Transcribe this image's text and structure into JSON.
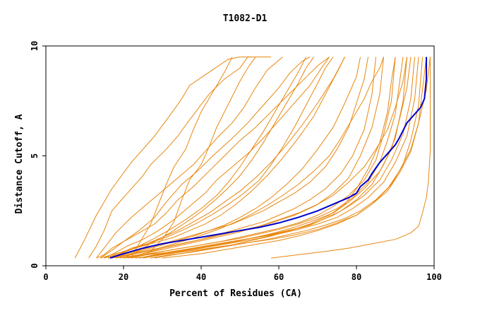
{
  "chart_data": {
    "type": "line",
    "title": "T1082-D1",
    "xlabel": "Percent of Residues (CA)",
    "ylabel": "Distance Cutoff, A",
    "xlim": [
      0,
      100
    ],
    "ylim": [
      0,
      10
    ],
    "x_ticks": [
      0,
      20,
      40,
      60,
      80,
      100
    ],
    "y_ticks": [
      0,
      5,
      10
    ],
    "grid": false,
    "colors": {
      "background_series": "#e8870e",
      "highlight": "#0000cc",
      "axes": "#000000"
    },
    "highlight_series": {
      "x": [
        16.5,
        20,
        25,
        30,
        35,
        40,
        45,
        50,
        55,
        60,
        65,
        70,
        74,
        78,
        80,
        81,
        83,
        84,
        86,
        88,
        90,
        91,
        93,
        95,
        96.5,
        97.5,
        98,
        98
      ],
      "y": [
        0.35,
        0.55,
        0.8,
        1.0,
        1.15,
        1.3,
        1.45,
        1.6,
        1.75,
        1.95,
        2.2,
        2.5,
        2.8,
        3.1,
        3.3,
        3.6,
        3.9,
        4.2,
        4.7,
        5.1,
        5.5,
        5.8,
        6.5,
        6.9,
        7.2,
        7.6,
        8.5,
        9.5
      ]
    },
    "series": [
      {
        "x": [
          7.5,
          10,
          13,
          17,
          22,
          28,
          33,
          35,
          37,
          42,
          47,
          50,
          52,
          56,
          58
        ],
        "y": [
          0.35,
          1.2,
          2.3,
          3.5,
          4.7,
          5.9,
          7.1,
          7.6,
          8.2,
          8.8,
          9.4,
          9.5,
          9.5,
          9.5,
          9.5
        ]
      },
      {
        "x": [
          11,
          13,
          15,
          17,
          22,
          25,
          27,
          31,
          34,
          36,
          39,
          42,
          46,
          50,
          52,
          53
        ],
        "y": [
          0.35,
          0.9,
          1.6,
          2.5,
          3.5,
          4.1,
          4.6,
          5.3,
          5.9,
          6.4,
          7.1,
          7.8,
          8.5,
          9.0,
          9.5,
          9.5
        ]
      },
      {
        "x": [
          13,
          15,
          18,
          22,
          26,
          30,
          34,
          38,
          41,
          44,
          48,
          51,
          54,
          57,
          61
        ],
        "y": [
          0.35,
          0.8,
          1.5,
          2.2,
          2.8,
          3.4,
          4.0,
          4.6,
          5.2,
          5.8,
          6.5,
          7.2,
          8.1,
          8.9,
          9.5
        ]
      },
      {
        "x": [
          14,
          17,
          20,
          24,
          28,
          31,
          35,
          39,
          43,
          48,
          52,
          56,
          60,
          63,
          66,
          68
        ],
        "y": [
          0.35,
          0.7,
          1.1,
          1.6,
          2.2,
          2.9,
          3.7,
          4.3,
          5.0,
          5.8,
          6.5,
          7.3,
          8.1,
          8.8,
          9.3,
          9.5
        ]
      },
      {
        "x": [
          13,
          15,
          17,
          20,
          24,
          28,
          31,
          34,
          38,
          42,
          46,
          50,
          54,
          58,
          62,
          66,
          70,
          73
        ],
        "y": [
          0.35,
          0.5,
          0.8,
          1.1,
          1.5,
          1.9,
          2.4,
          3.0,
          3.6,
          4.3,
          5.0,
          5.7,
          6.3,
          7.0,
          7.7,
          8.4,
          9.1,
          9.5
        ]
      },
      {
        "x": [
          15,
          18,
          21,
          25,
          29,
          33,
          37,
          41,
          44,
          48,
          52,
          56,
          60,
          64,
          68,
          71,
          73
        ],
        "y": [
          0.35,
          0.6,
          0.9,
          1.2,
          1.6,
          2.1,
          2.7,
          3.3,
          3.9,
          4.5,
          5.1,
          5.8,
          6.6,
          7.4,
          8.2,
          9.0,
          9.5
        ]
      },
      {
        "x": [
          16,
          19,
          22,
          26,
          30,
          34,
          38,
          42,
          46,
          50,
          54,
          58,
          62,
          66,
          70,
          74,
          77
        ],
        "y": [
          0.35,
          0.55,
          0.8,
          1.0,
          1.3,
          1.6,
          2.0,
          2.4,
          2.9,
          3.4,
          4.0,
          4.7,
          5.5,
          6.4,
          7.4,
          8.5,
          9.5
        ]
      },
      {
        "x": [
          14,
          17,
          21,
          25,
          29,
          33,
          37,
          41,
          45,
          49,
          53,
          57,
          61,
          65,
          69,
          72,
          75,
          77
        ],
        "y": [
          0.35,
          0.5,
          0.7,
          0.9,
          1.1,
          1.3,
          1.6,
          1.9,
          2.3,
          2.8,
          3.4,
          4.1,
          4.9,
          5.8,
          6.8,
          7.8,
          8.8,
          9.5
        ]
      },
      {
        "x": [
          18,
          22,
          26,
          30,
          34,
          38,
          42,
          46,
          50,
          54,
          58,
          62,
          66,
          70,
          74,
          77,
          80,
          81
        ],
        "y": [
          0.35,
          0.55,
          0.75,
          0.95,
          1.15,
          1.35,
          1.6,
          1.85,
          2.2,
          2.6,
          3.1,
          3.7,
          4.4,
          5.3,
          6.3,
          7.4,
          8.6,
          9.5
        ]
      },
      {
        "x": [
          16,
          20,
          24,
          28,
          32,
          36,
          40,
          44,
          48,
          52,
          56,
          60,
          64,
          68,
          72,
          75,
          78,
          80,
          82,
          83
        ],
        "y": [
          0.35,
          0.5,
          0.7,
          0.9,
          1.1,
          1.3,
          1.5,
          1.7,
          1.9,
          2.2,
          2.5,
          2.9,
          3.3,
          3.8,
          4.5,
          5.3,
          6.3,
          7.4,
          8.5,
          9.5
        ]
      },
      {
        "x": [
          20,
          24,
          28,
          32,
          36,
          40,
          44,
          48,
          52,
          56,
          60,
          64,
          68,
          72,
          76,
          79,
          82,
          84,
          85
        ],
        "y": [
          0.35,
          0.5,
          0.7,
          0.9,
          1.05,
          1.2,
          1.4,
          1.6,
          1.8,
          2.0,
          2.3,
          2.6,
          3.0,
          3.5,
          4.2,
          5.0,
          6.2,
          7.8,
          9.5
        ]
      },
      {
        "x": [
          18,
          22,
          26,
          30,
          35,
          40,
          45,
          50,
          55,
          60,
          65,
          70,
          74,
          78,
          81,
          84,
          86,
          87
        ],
        "y": [
          0.35,
          0.5,
          0.65,
          0.8,
          1.0,
          1.2,
          1.4,
          1.6,
          1.8,
          2.1,
          2.4,
          2.8,
          3.3,
          4.0,
          5.0,
          6.3,
          7.8,
          9.5
        ]
      },
      {
        "x": [
          22,
          26,
          30,
          35,
          40,
          45,
          50,
          55,
          60,
          65,
          70,
          74,
          78,
          82,
          85,
          87,
          89,
          90
        ],
        "y": [
          0.35,
          0.5,
          0.65,
          0.8,
          0.95,
          1.1,
          1.3,
          1.5,
          1.7,
          1.95,
          2.3,
          2.7,
          3.2,
          3.9,
          4.8,
          6.0,
          7.5,
          9.5
        ]
      },
      {
        "x": [
          20,
          25,
          30,
          35,
          40,
          45,
          50,
          55,
          60,
          65,
          70,
          75,
          79,
          83,
          86,
          88,
          90,
          91,
          92
        ],
        "y": [
          0.35,
          0.5,
          0.65,
          0.8,
          0.95,
          1.1,
          1.25,
          1.45,
          1.65,
          1.9,
          2.2,
          2.6,
          3.1,
          3.8,
          4.7,
          5.7,
          6.9,
          8.2,
          9.5
        ]
      },
      {
        "x": [
          24,
          28,
          33,
          38,
          43,
          48,
          53,
          58,
          63,
          68,
          72,
          76,
          80,
          84,
          87,
          90,
          92,
          93
        ],
        "y": [
          0.35,
          0.5,
          0.65,
          0.8,
          0.95,
          1.1,
          1.25,
          1.4,
          1.6,
          1.85,
          2.15,
          2.5,
          3.0,
          3.7,
          4.6,
          5.8,
          7.5,
          9.5
        ]
      },
      {
        "x": [
          21,
          26,
          31,
          36,
          41,
          46,
          51,
          56,
          61,
          66,
          70,
          74,
          78,
          82,
          86,
          89,
          92,
          94,
          95
        ],
        "y": [
          0.35,
          0.5,
          0.6,
          0.75,
          0.9,
          1.05,
          1.2,
          1.35,
          1.55,
          1.75,
          2.0,
          2.3,
          2.7,
          3.2,
          3.9,
          4.8,
          6.0,
          7.6,
          9.5
        ]
      },
      {
        "x": [
          25,
          30,
          35,
          40,
          45,
          50,
          55,
          60,
          65,
          70,
          75,
          79,
          83,
          87,
          90,
          93,
          95,
          96
        ],
        "y": [
          0.35,
          0.5,
          0.65,
          0.8,
          0.95,
          1.1,
          1.25,
          1.45,
          1.65,
          1.9,
          2.2,
          2.6,
          3.1,
          3.8,
          4.7,
          5.9,
          7.6,
          9.5
        ]
      },
      {
        "x": [
          27,
          32,
          37,
          42,
          47,
          52,
          57,
          62,
          67,
          72,
          77,
          81,
          85,
          89,
          92,
          94,
          96,
          97
        ],
        "y": [
          0.35,
          0.5,
          0.6,
          0.75,
          0.9,
          1.05,
          1.2,
          1.4,
          1.6,
          1.85,
          2.15,
          2.5,
          3.0,
          3.7,
          4.6,
          5.7,
          7.3,
          9.5
        ]
      },
      {
        "x": [
          23,
          28,
          34,
          40,
          46,
          52,
          58,
          64,
          70,
          75,
          80,
          84,
          88,
          91,
          94,
          96,
          97,
          98
        ],
        "y": [
          0.35,
          0.45,
          0.6,
          0.75,
          0.9,
          1.05,
          1.2,
          1.4,
          1.65,
          1.95,
          2.3,
          2.8,
          3.4,
          4.2,
          5.2,
          6.5,
          8.0,
          9.5
        ]
      },
      {
        "x": [
          30,
          35,
          40,
          45,
          50,
          55,
          60,
          65,
          70,
          75,
          80,
          84,
          88,
          91,
          94,
          96,
          98,
          99
        ],
        "y": [
          0.35,
          0.45,
          0.55,
          0.7,
          0.85,
          1.0,
          1.15,
          1.35,
          1.6,
          1.9,
          2.3,
          2.8,
          3.5,
          4.3,
          5.3,
          6.5,
          8.0,
          9.5
        ]
      },
      {
        "x": [
          19,
          24,
          29,
          34,
          39,
          44,
          49,
          54,
          59,
          64,
          69,
          74,
          78,
          82,
          85,
          88,
          90,
          92,
          93
        ],
        "y": [
          0.35,
          0.5,
          0.7,
          0.9,
          1.1,
          1.3,
          1.5,
          1.75,
          2.0,
          2.3,
          2.7,
          3.2,
          3.8,
          4.5,
          5.3,
          6.2,
          7.2,
          8.4,
          9.5
        ]
      },
      {
        "x": [
          17,
          21,
          25,
          29,
          33,
          37,
          41,
          45,
          49,
          53,
          57,
          61,
          65,
          69,
          73,
          76,
          79,
          82,
          84,
          86,
          87
        ],
        "y": [
          0.35,
          0.5,
          0.65,
          0.8,
          1.0,
          1.2,
          1.45,
          1.7,
          2.0,
          2.35,
          2.75,
          3.2,
          3.7,
          4.3,
          5.0,
          5.8,
          6.7,
          7.6,
          8.4,
          9.0,
          9.5
        ]
      },
      {
        "x": [
          15,
          19,
          23,
          27,
          31,
          35,
          39,
          43,
          47,
          51,
          55,
          58,
          61,
          64,
          67,
          70,
          72,
          74
        ],
        "y": [
          0.35,
          0.55,
          0.8,
          1.05,
          1.3,
          1.6,
          1.95,
          2.35,
          2.8,
          3.3,
          3.9,
          4.6,
          5.4,
          6.3,
          7.3,
          8.3,
          9.0,
          9.5
        ]
      },
      {
        "x": [
          17,
          20,
          24,
          28,
          32,
          36,
          40,
          44,
          47,
          50,
          53,
          56,
          59,
          62,
          65,
          67
        ],
        "y": [
          0.35,
          0.6,
          0.9,
          1.25,
          1.65,
          2.1,
          2.6,
          3.2,
          3.8,
          4.5,
          5.3,
          6.1,
          7.0,
          7.9,
          8.8,
          9.5
        ]
      },
      {
        "x": [
          58,
          65,
          72,
          78,
          84,
          90,
          94,
          96,
          97,
          98,
          98.5,
          99,
          99,
          99
        ],
        "y": [
          0.35,
          0.5,
          0.65,
          0.8,
          1.0,
          1.2,
          1.5,
          1.8,
          2.4,
          3.1,
          3.8,
          5.2,
          7.5,
          9.5
        ]
      },
      {
        "x": [
          26,
          30,
          33,
          35,
          37,
          40,
          42,
          44,
          46,
          48,
          50,
          52,
          54
        ],
        "y": [
          0.5,
          1.2,
          2.0,
          3.0,
          3.9,
          4.6,
          5.4,
          6.3,
          7.0,
          7.7,
          8.4,
          9.0,
          9.5
        ]
      },
      {
        "x": [
          22,
          24,
          27,
          29,
          31,
          33,
          36,
          38,
          40,
          43,
          46,
          48
        ],
        "y": [
          0.4,
          1.0,
          1.9,
          2.8,
          3.7,
          4.5,
          5.3,
          6.2,
          7.0,
          7.9,
          8.8,
          9.5
        ]
      },
      {
        "x": [
          20,
          23,
          26,
          29,
          32,
          35,
          38,
          41,
          44,
          47,
          50,
          53,
          56,
          59,
          62,
          65,
          67,
          69
        ],
        "y": [
          0.35,
          0.6,
          0.9,
          1.2,
          1.5,
          1.85,
          2.2,
          2.6,
          3.05,
          3.55,
          4.1,
          4.8,
          5.6,
          6.5,
          7.4,
          8.3,
          9.0,
          9.5
        ]
      },
      {
        "x": [
          28,
          33,
          38,
          43,
          48,
          53,
          58,
          63,
          68,
          73,
          77,
          80,
          83,
          86,
          88,
          89,
          90
        ],
        "y": [
          0.35,
          0.5,
          0.65,
          0.8,
          0.95,
          1.15,
          1.35,
          1.6,
          1.9,
          2.3,
          2.8,
          3.5,
          4.4,
          5.6,
          7.0,
          8.4,
          9.5
        ]
      },
      {
        "x": [
          24,
          29,
          34,
          39,
          44,
          49,
          54,
          59,
          64,
          69,
          74,
          78,
          82,
          86,
          89,
          91,
          93,
          94
        ],
        "y": [
          0.35,
          0.5,
          0.65,
          0.8,
          0.95,
          1.1,
          1.3,
          1.5,
          1.75,
          2.05,
          2.4,
          2.9,
          3.5,
          4.3,
          5.3,
          6.6,
          8.1,
          9.5
        ]
      }
    ]
  }
}
